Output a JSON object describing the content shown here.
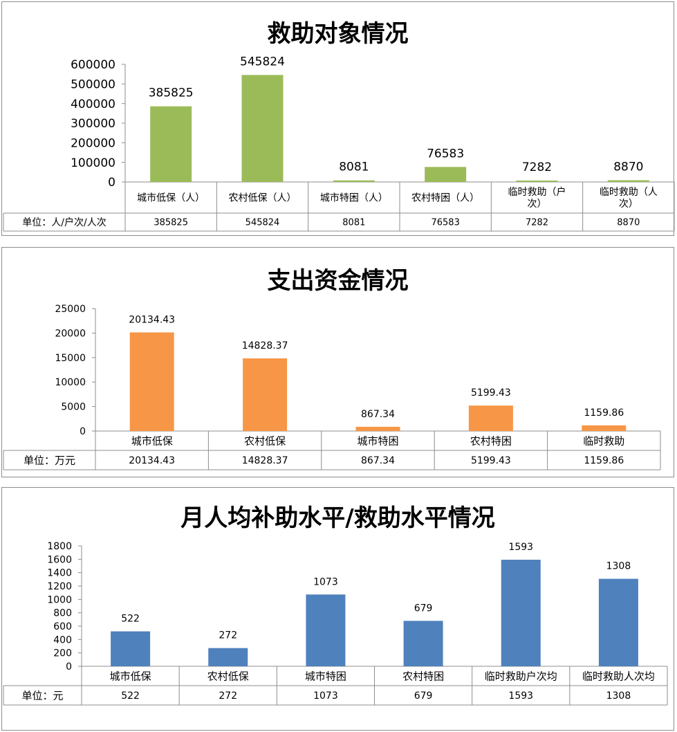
{
  "charts": [
    {
      "title": "救助对象情况",
      "type": "bar",
      "color": "#9bbb59",
      "unit_label": "单位：人/户次/人次",
      "categories": [
        "城市低保（人）",
        "农村低保（人）",
        "城市特困（人）",
        "农村特困（人）",
        "临时救助（户次）",
        "临时救助（人次）"
      ],
      "category_lines": [
        [
          "城市低保（人）"
        ],
        [
          "农村低保（人）"
        ],
        [
          "城市特困（人）"
        ],
        [
          "农村特困（人）"
        ],
        [
          "临时救助（户",
          "次）"
        ],
        [
          "临时救助（人",
          "次）"
        ]
      ],
      "values": [
        385825,
        545824,
        8081,
        76583,
        7282,
        8870
      ],
      "y_ticks": [
        "600000",
        "500000",
        "400000",
        "300000",
        "200000",
        "100000",
        "0"
      ],
      "ylim": [
        0,
        600000
      ]
    },
    {
      "title": "支出资金情况",
      "type": "bar",
      "color": "#f79646",
      "unit_label": "单位：万元",
      "categories": [
        "城市低保",
        "农村低保",
        "城市特困",
        "农村特困",
        "临时救助"
      ],
      "category_lines": [
        [
          "城市低保"
        ],
        [
          "农村低保"
        ],
        [
          "城市特困"
        ],
        [
          "农村特困"
        ],
        [
          "临时救助"
        ]
      ],
      "values": [
        20134.43,
        14828.37,
        867.34,
        5199.43,
        1159.86
      ],
      "value_labels": [
        "20134.43",
        "14828.37",
        "867.34",
        "5199.43",
        "1159.86"
      ],
      "y_ticks": [
        "25000",
        "20000",
        "15000",
        "10000",
        "5000",
        "0"
      ],
      "ylim": [
        0,
        25000
      ]
    },
    {
      "title": "月人均补助水平/救助水平情况",
      "type": "bar",
      "color": "#4f81bd",
      "unit_label": "单位：元",
      "categories": [
        "城市低保",
        "农村低保",
        "城市特困",
        "农村特困",
        "临时救助户次均",
        "临时救助人次均"
      ],
      "category_lines": [
        [
          "城市低保"
        ],
        [
          "农村低保"
        ],
        [
          "城市特困"
        ],
        [
          "农村特困"
        ],
        [
          "临时救助户次均"
        ],
        [
          "临时救助人次均"
        ]
      ],
      "values": [
        522,
        272,
        1073,
        679,
        1593,
        1308
      ],
      "y_ticks": [
        "1800",
        "1600",
        "1400",
        "1200",
        "1000",
        "800",
        "600",
        "400",
        "200",
        "0"
      ],
      "ylim": [
        0,
        1800
      ]
    }
  ]
}
